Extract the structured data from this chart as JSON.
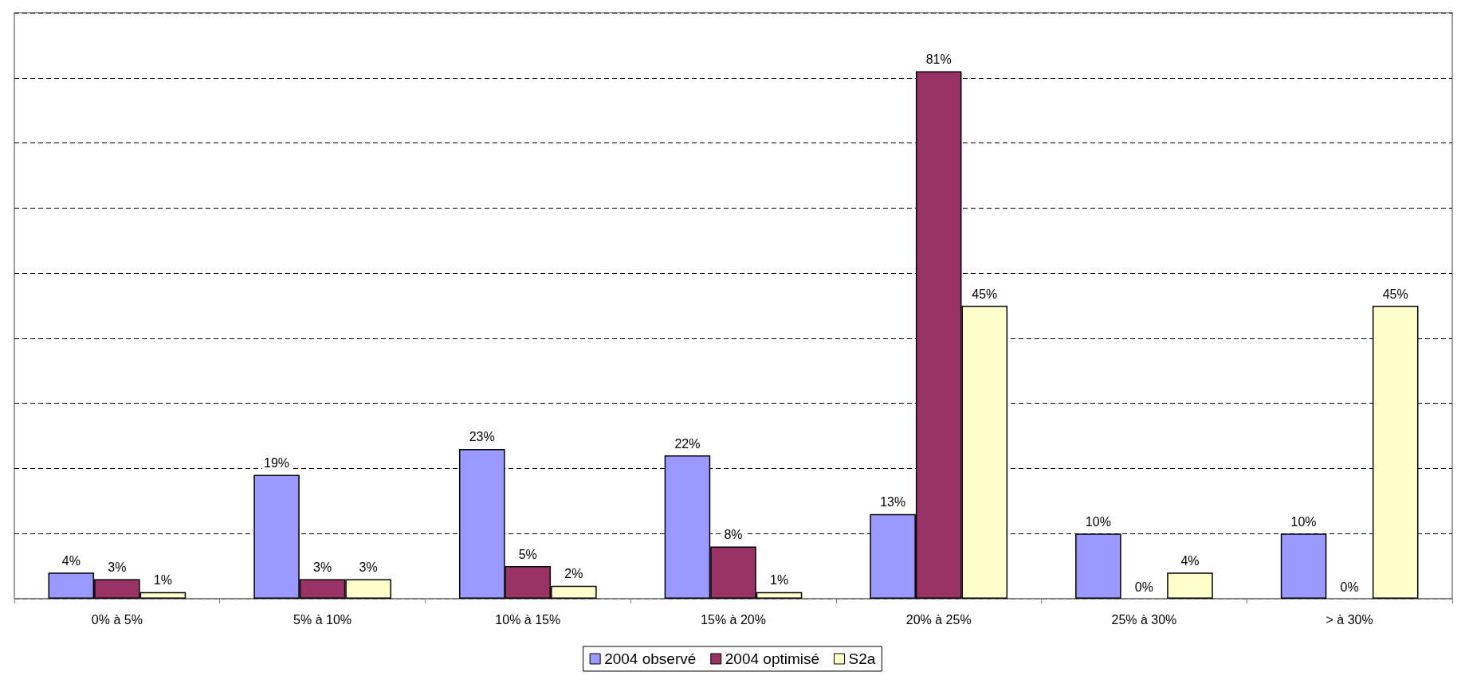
{
  "chart_data": {
    "type": "bar",
    "categories": [
      "0% à 5%",
      "5% à 10%",
      "10% à 15%",
      "15% à 20%",
      "20% à 25%",
      "25% à 30%",
      "> à 30%"
    ],
    "series": [
      {
        "name": "2004 observé",
        "color": "#9999ff",
        "values": [
          4,
          19,
          23,
          22,
          13,
          10,
          10
        ],
        "value_labels": [
          "4%",
          "19%",
          "23%",
          "22%",
          "13%",
          "10%",
          "10%"
        ]
      },
      {
        "name": "2004 optimisé",
        "color": "#993366",
        "values": [
          3,
          3,
          5,
          8,
          81,
          0,
          0
        ],
        "value_labels": [
          "3%",
          "3%",
          "5%",
          "8%",
          "81%",
          "0%",
          "0%"
        ]
      },
      {
        "name": "S2a",
        "color": "#ffffcc",
        "values": [
          1,
          3,
          2,
          1,
          45,
          4,
          45
        ],
        "value_labels": [
          "1%",
          "3%",
          "2%",
          "1%",
          "45%",
          "4%",
          "45%"
        ]
      }
    ],
    "ylim": [
      0,
      90
    ],
    "yticks": [
      {
        "value": 0,
        "label": null
      },
      {
        "value": 10,
        "label": null
      },
      {
        "value": 20,
        "label": null
      },
      {
        "value": 30,
        "label": null
      },
      {
        "value": 40,
        "label": null
      },
      {
        "value": 50,
        "label": null
      },
      {
        "value": 60,
        "label": null
      },
      {
        "value": 70,
        "label": null
      },
      {
        "value": 80,
        "label": null
      },
      {
        "value": 90,
        "label": null
      }
    ],
    "tick_labels": "x",
    "grid": "y",
    "legend": "bottom"
  }
}
